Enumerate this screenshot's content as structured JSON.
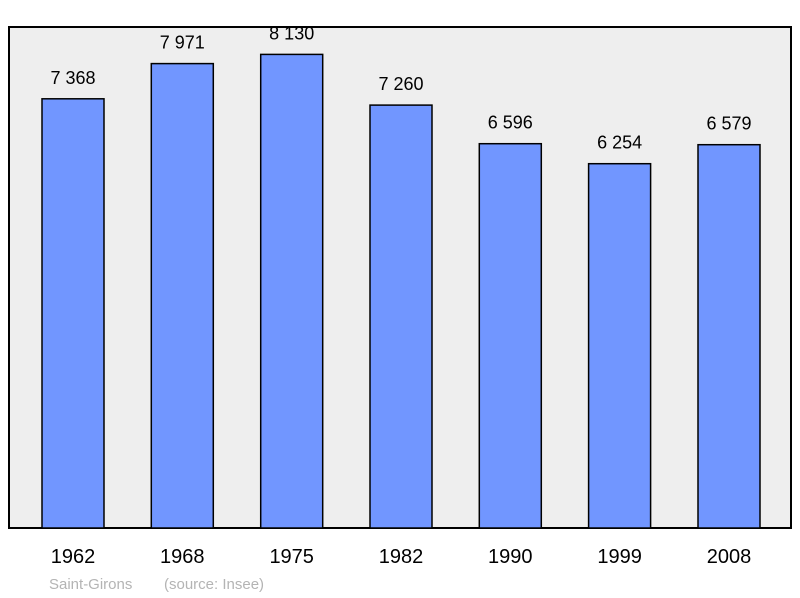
{
  "chart_data": {
    "type": "bar",
    "categories": [
      "1962",
      "1968",
      "1975",
      "1982",
      "1990",
      "1999",
      "2008"
    ],
    "values": [
      7368,
      7971,
      8130,
      7260,
      6596,
      6254,
      6579
    ],
    "value_labels": [
      "7 368",
      "7 971",
      "8 130",
      "7 260",
      "6 596",
      "6 254",
      "6 579"
    ],
    "ylim": [
      0,
      8600
    ],
    "grid": false,
    "colors": {
      "bar": "#7196ff",
      "plot_bg": "#eeeeee",
      "border": "#000000"
    }
  },
  "footer": {
    "place": "Saint-Girons",
    "source": "(source: Insee)"
  }
}
